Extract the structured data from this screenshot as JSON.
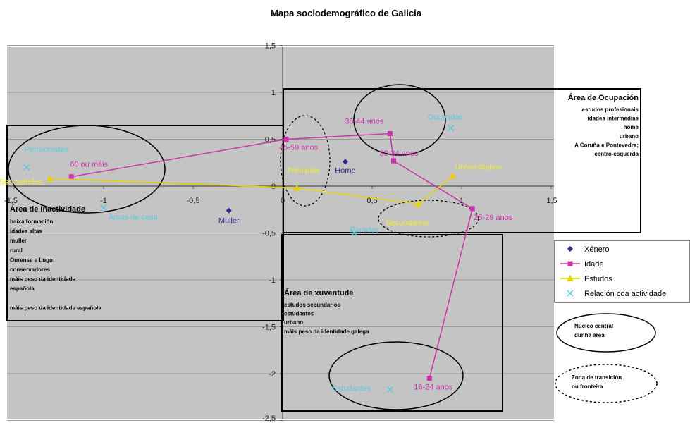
{
  "chart_data": {
    "type": "scatter",
    "title": "Mapa sociodemográfico de Galicia",
    "xlabel": "",
    "ylabel": "",
    "xlim": [
      -1.5,
      1.5
    ],
    "ylim": [
      -2.5,
      1.5
    ],
    "x_ticks": [
      {
        "v": -1.5,
        "label": "-1,5"
      },
      {
        "v": -1,
        "label": "-1"
      },
      {
        "v": -0.5,
        "label": "-0,5"
      },
      {
        "v": 0,
        "label": "0"
      },
      {
        "v": 0.5,
        "label": "0,5"
      },
      {
        "v": 1,
        "label": "1"
      },
      {
        "v": 1.5,
        "label": "1,5"
      }
    ],
    "y_ticks": [
      {
        "v": 1.5,
        "label": "1,5"
      },
      {
        "v": 1,
        "label": "1"
      },
      {
        "v": 0.5,
        "label": "0,5"
      },
      {
        "v": 0,
        "label": "0"
      },
      {
        "v": -0.5,
        "label": "-0,5"
      },
      {
        "v": -1,
        "label": "-1"
      },
      {
        "v": -1.5,
        "label": "-1,5"
      },
      {
        "v": -2,
        "label": "-2"
      },
      {
        "v": -2.5,
        "label": "-2,5"
      }
    ],
    "grid": true,
    "legend_position": "right",
    "series": [
      {
        "name": "Xénero",
        "color": "#2b2b8a",
        "marker": "diamond",
        "connected": false,
        "points": [
          {
            "x": -0.3,
            "y": -0.26,
            "label": "Muller"
          },
          {
            "x": 0.35,
            "y": 0.26,
            "label": "Home"
          }
        ]
      },
      {
        "name": "Idade",
        "color": "#cc33aa",
        "marker": "square",
        "connected": true,
        "points": [
          {
            "x": -1.18,
            "y": 0.1,
            "label": "60 ou máis"
          },
          {
            "x": 0.02,
            "y": 0.5,
            "label": "45-59 anos"
          },
          {
            "x": 0.6,
            "y": 0.56,
            "label": "35-44 anos"
          },
          {
            "x": 0.62,
            "y": 0.27,
            "label": "30-34 anos"
          },
          {
            "x": 1.06,
            "y": -0.24,
            "label": "25-29 anos"
          },
          {
            "x": 0.82,
            "y": -2.05,
            "label": "16-24 anos"
          }
        ]
      },
      {
        "name": "Estudos",
        "color": "#e6d200",
        "marker": "triangle",
        "connected": true,
        "points": [
          {
            "x": -1.3,
            "y": 0.08,
            "label": "Sen estudos"
          },
          {
            "x": 0.08,
            "y": -0.02,
            "label": "Primarios"
          },
          {
            "x": 0.76,
            "y": -0.19,
            "label": "Secundarios"
          },
          {
            "x": 0.95,
            "y": 0.11,
            "label": "Universitarios"
          }
        ]
      },
      {
        "name": "Relación coa actividade",
        "color": "#5bc8e0",
        "marker": "x",
        "connected": false,
        "points": [
          {
            "x": -1.43,
            "y": 0.2,
            "label": "Pensionistas"
          },
          {
            "x": -1.0,
            "y": -0.23,
            "label": "Amas de casa"
          },
          {
            "x": 0.94,
            "y": 0.62,
            "label": "Ocupados"
          },
          {
            "x": 0.4,
            "y": -0.5,
            "label": "Parados"
          },
          {
            "x": 0.6,
            "y": -2.17,
            "label": "Estudantes"
          }
        ]
      }
    ],
    "annotations": [
      {
        "id": "ocupacion",
        "title": "Área de Ocupación",
        "lines": [
          "estudos profesionais",
          "idades intermedias",
          "home",
          "urbano",
          "A Coruña e Pontevedra;",
          "centro-esquerda"
        ]
      },
      {
        "id": "inactividade",
        "title": "Área de Inactividade",
        "lines": [
          "baixa formación",
          "idades altas",
          "muller",
          "rural",
          "Ourense e Lugo:",
          "conservadores",
          "máis peso da identidade",
          "española",
          "",
          "máis peso da identidade española"
        ]
      },
      {
        "id": "xuventude",
        "title": "Área de xuventude",
        "lines": [
          "estudos secundarios",
          "estudantes",
          "urbano;",
          "máis peso da identidade galega"
        ]
      }
    ],
    "key": {
      "core": [
        "Núcleo central",
        "dunha área"
      ],
      "transition": [
        "Zona de transición",
        "ou fronteira"
      ]
    }
  }
}
